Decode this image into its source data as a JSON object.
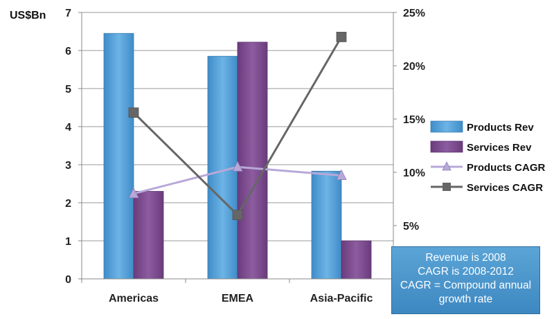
{
  "chart_data": {
    "type": "bar",
    "categories": [
      "Americas",
      "EMEA",
      "Asia-Pacific"
    ],
    "series": [
      {
        "name": "Products Rev",
        "type": "bar",
        "axis": "left",
        "color": "#4f9fd6",
        "values": [
          6.45,
          5.85,
          2.83
        ]
      },
      {
        "name": "Services Rev",
        "type": "bar",
        "axis": "left",
        "color": "#7a4a8c",
        "values": [
          2.3,
          6.22,
          1.0
        ]
      },
      {
        "name": "Products CAGR",
        "type": "line",
        "axis": "right",
        "color": "#b8a8d8",
        "marker": "triangle",
        "values": [
          8.0,
          10.5,
          9.7
        ]
      },
      {
        "name": "Services CAGR",
        "type": "line",
        "axis": "right",
        "color": "#666666",
        "marker": "square",
        "values": [
          15.6,
          6.0,
          22.7
        ]
      }
    ],
    "ylabel": "US$Bn",
    "ylim": [
      0,
      7
    ],
    "y_ticks": [
      "0",
      "1",
      "2",
      "3",
      "4",
      "5",
      "6",
      "7"
    ],
    "y2lim": [
      0,
      25
    ],
    "y2_ticks": [
      "5%",
      "10%",
      "15%",
      "20%",
      "25%"
    ],
    "grid": true,
    "legend_position": "right"
  },
  "note": {
    "lines": [
      "Revenue is 2008",
      "CAGR is 2008-2012",
      "CAGR = Compound annual",
      "growth rate"
    ]
  }
}
